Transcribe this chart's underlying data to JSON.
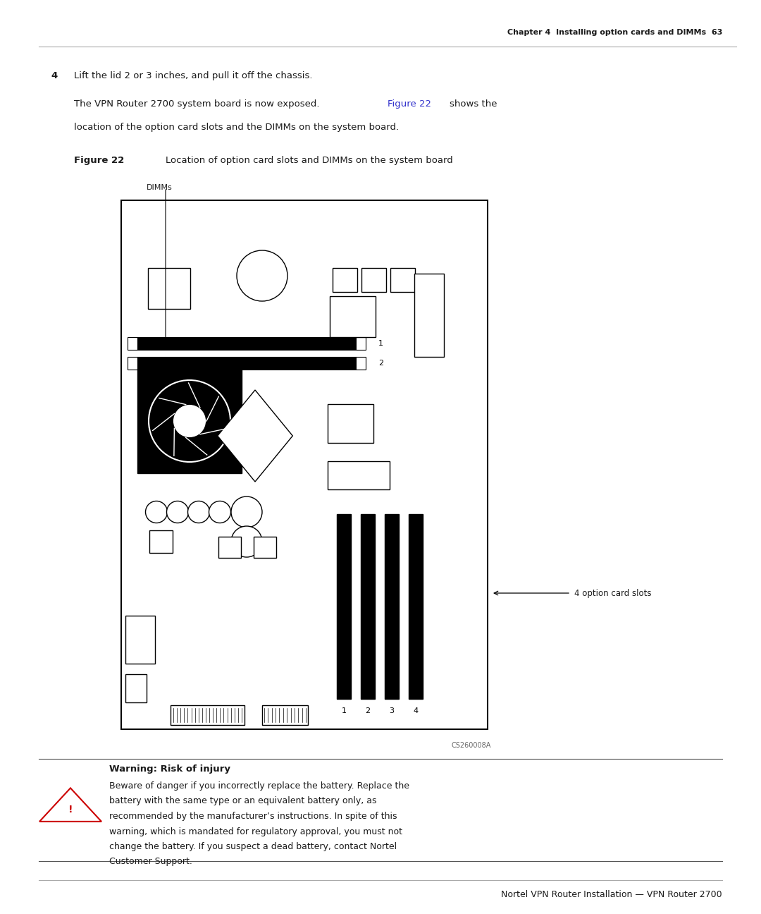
{
  "page_width": 10.8,
  "page_height": 12.96,
  "bg_color": "#ffffff",
  "header_text": "Chapter 4  Installing option cards and DIMMs  63",
  "footer_text": "Nortel VPN Router Installation — VPN Router 2700",
  "step_num": "4",
  "step_text": "Lift the lid 2 or 3 inches, and pull it off the chassis.",
  "body_text_1": "The VPN Router 2700 system board is now exposed.",
  "body_link": "Figure 22",
  "body_text_2": "shows the",
  "body_line2": "location of the option card slots and the DIMMs on the system board.",
  "figure_label": "Figure 22",
  "figure_caption": "   Location of option card slots and DIMMs on the system board",
  "dimms_label": "DIMMs",
  "option_slots_label": "4 option card slots",
  "cs_label": "CS260008A",
  "warning_title": "Warning: Risk of injury",
  "warning_text_1": "Beware of danger if you incorrectly replace the battery. Replace the",
  "warning_text_2": "battery with the same type or an equivalent battery only, as",
  "warning_text_3": "recommended by the manufacturer’s instructions. In spite of this",
  "warning_text_4": "warning, which is mandated for regulatory approval, you must not",
  "warning_text_5": "change the battery. If you suspect a dead battery, contact Nortel",
  "warning_text_6": "Customer Support.",
  "link_color": "#3333cc",
  "text_color": "#1a1a1a",
  "board_color": "#000000",
  "board_fill": "#ffffff"
}
